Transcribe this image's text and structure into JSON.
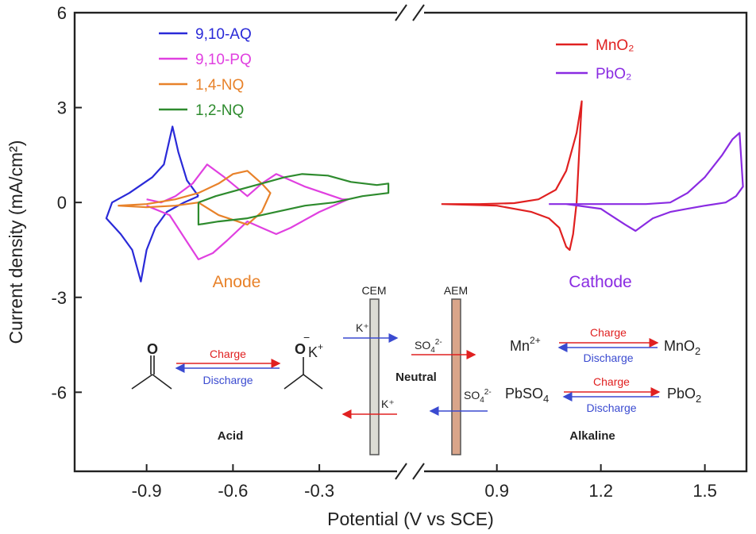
{
  "chart_data": {
    "type": "line",
    "xlabel": "Potential (V vs SCE)",
    "ylabel": "Current density (mA/cm²)",
    "ylim": [
      -8.5,
      6
    ],
    "yticks": [
      6,
      3,
      0,
      -3,
      -6
    ],
    "xaxis_break": true,
    "xlim_left": [
      -1.15,
      -0.03
    ],
    "xlim_right": [
      0.69,
      1.62
    ],
    "xticks_left": [
      -0.9,
      -0.6,
      -0.3
    ],
    "xticks_right": [
      0.9,
      1.2,
      1.5
    ],
    "grid": false,
    "legend_left": "top-left",
    "legend_right": "top-right",
    "series": [
      {
        "name": "9,10-AQ",
        "color": "#2a2ad8",
        "side": "left",
        "x": [
          -0.72,
          -0.76,
          -0.79,
          -0.81,
          -0.84,
          -0.88,
          -0.96,
          -1.02,
          -1.04,
          -0.99,
          -0.95,
          -0.92,
          -0.9,
          -0.87,
          -0.83,
          -0.77,
          -0.72
        ],
        "y": [
          0.2,
          0.7,
          1.6,
          2.4,
          1.2,
          0.8,
          0.3,
          0.0,
          -0.5,
          -1.0,
          -1.5,
          -2.5,
          -1.5,
          -0.8,
          -0.3,
          0.0,
          0.2
        ]
      },
      {
        "name": "9,10-PQ",
        "color": "#e040e0",
        "side": "left",
        "x": [
          -0.9,
          -0.85,
          -0.8,
          -0.74,
          -0.69,
          -0.63,
          -0.55,
          -0.5,
          -0.45,
          -0.35,
          -0.22,
          -0.2,
          -0.3,
          -0.4,
          -0.45,
          -0.5,
          -0.55,
          -0.62,
          -0.67,
          -0.72,
          -0.77,
          -0.82,
          -0.9
        ],
        "y": [
          0.1,
          0.0,
          0.2,
          0.6,
          1.2,
          0.8,
          0.2,
          0.6,
          0.9,
          0.5,
          0.1,
          0.1,
          -0.3,
          -0.8,
          -1.0,
          -0.8,
          -0.6,
          -1.2,
          -1.6,
          -1.8,
          -1.1,
          -0.4,
          -0.1
        ]
      },
      {
        "name": "1,4-NQ",
        "color": "#e8822a",
        "side": "left",
        "x": [
          -1.0,
          -0.9,
          -0.8,
          -0.72,
          -0.65,
          -0.6,
          -0.55,
          -0.5,
          -0.47,
          -0.5,
          -0.55,
          -0.65,
          -0.72,
          -0.8,
          -0.9,
          -1.0
        ],
        "y": [
          -0.1,
          -0.05,
          0.1,
          0.3,
          0.6,
          0.9,
          1.0,
          0.6,
          0.3,
          -0.3,
          -0.7,
          -0.4,
          0.0,
          -0.1,
          -0.15,
          -0.1
        ]
      },
      {
        "name": "1,2-NQ",
        "color": "#2e8b2e",
        "side": "left",
        "x": [
          -0.72,
          -0.66,
          -0.58,
          -0.5,
          -0.42,
          -0.36,
          -0.27,
          -0.19,
          -0.1,
          -0.06,
          -0.06,
          -0.15,
          -0.25,
          -0.35,
          -0.45,
          -0.55,
          -0.65,
          -0.72,
          -0.72
        ],
        "y": [
          0.0,
          0.2,
          0.4,
          0.6,
          0.8,
          0.9,
          0.85,
          0.65,
          0.55,
          0.6,
          0.3,
          0.2,
          0.0,
          -0.1,
          -0.3,
          -0.5,
          -0.6,
          -0.7,
          0.0
        ]
      },
      {
        "name": "MnO₂",
        "color": "#e02020",
        "side": "right",
        "x": [
          0.74,
          0.85,
          0.95,
          1.02,
          1.07,
          1.1,
          1.13,
          1.145,
          1.13,
          1.12,
          1.11,
          1.1,
          1.08,
          1.05,
          1.0,
          0.9,
          0.74
        ],
        "y": [
          -0.05,
          -0.05,
          -0.02,
          0.1,
          0.4,
          1.0,
          2.2,
          3.2,
          0.0,
          -1.0,
          -1.5,
          -1.4,
          -0.8,
          -0.5,
          -0.3,
          -0.1,
          -0.05
        ]
      },
      {
        "name": "PbO₂",
        "color": "#8a2be2",
        "side": "right",
        "x": [
          1.05,
          1.15,
          1.25,
          1.33,
          1.4,
          1.45,
          1.5,
          1.55,
          1.58,
          1.6,
          1.61,
          1.59,
          1.56,
          1.5,
          1.45,
          1.4,
          1.35,
          1.3,
          1.27,
          1.2,
          1.1,
          1.05
        ],
        "y": [
          -0.05,
          -0.05,
          -0.05,
          -0.05,
          0.0,
          0.3,
          0.8,
          1.5,
          2.0,
          2.2,
          0.5,
          0.2,
          0.0,
          -0.1,
          -0.2,
          -0.3,
          -0.5,
          -0.9,
          -0.7,
          -0.2,
          -0.05,
          -0.05
        ]
      }
    ],
    "annotations": {
      "anode": "Anode",
      "cathode": "Cathode",
      "cem": "CEM",
      "aem": "AEM",
      "k_plus": "K⁺",
      "so4": "SO",
      "so4_sub": "4",
      "so4_sup": "2-",
      "neutral": "Neutral",
      "acid": "Acid",
      "alkaline": "Alkaline",
      "charge": "Charge",
      "discharge": "Discharge",
      "o_atom": "O",
      "o_minus": "−",
      "k_atom": "K",
      "k_sup": "+",
      "mn2": "Mn",
      "mn2_sup": "2+",
      "mno2": "MnO",
      "two": "2",
      "pbso4": "PbSO",
      "four": "4",
      "pbo2": "PbO"
    }
  }
}
